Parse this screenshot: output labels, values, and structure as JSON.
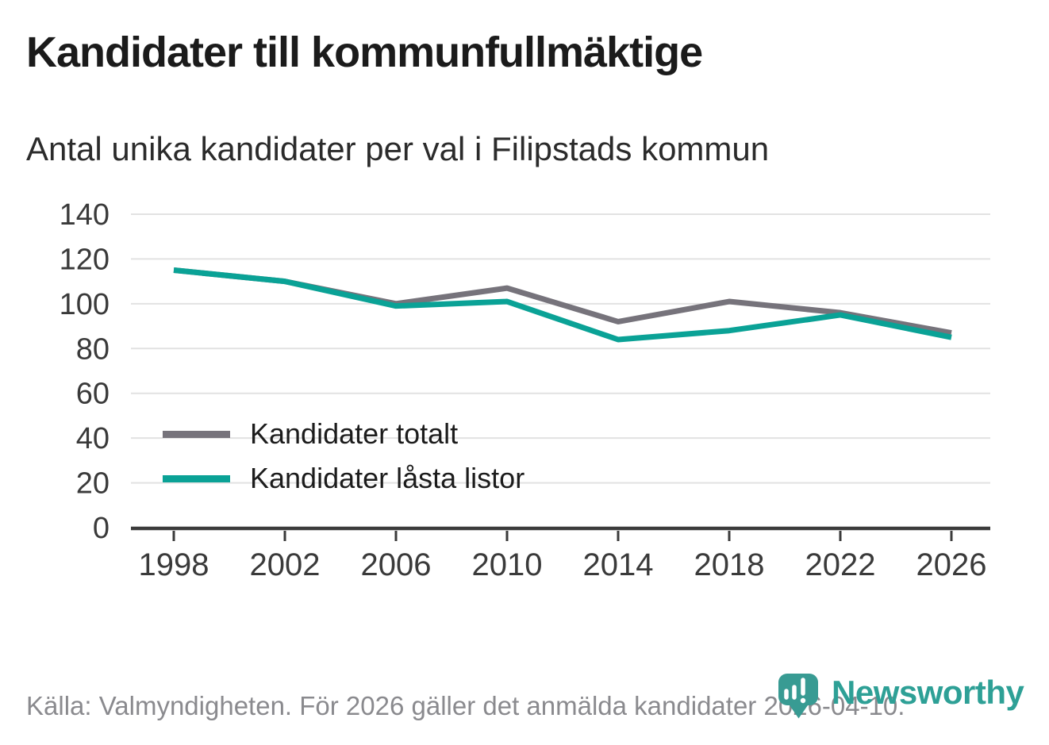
{
  "header": {
    "title": "Kandidater till kommunfullmäktige",
    "subtitle": "Antal unika kandidater per val i Filipstads kommun"
  },
  "chart_data": {
    "type": "line",
    "title": "Kandidater till kommunfullmäktige",
    "subtitle": "Antal unika kandidater per val i Filipstads kommun",
    "x": [
      1998,
      2002,
      2006,
      2010,
      2014,
      2018,
      2022,
      2026
    ],
    "series": [
      {
        "name": "Kandidater totalt",
        "color": "#76737B",
        "values": [
          115,
          110,
          100,
          107,
          92,
          101,
          96,
          87
        ]
      },
      {
        "name": "Kandidater låsta listor",
        "color": "#0AA296",
        "values": [
          115,
          110,
          99,
          101,
          84,
          88,
          95,
          85
        ]
      }
    ],
    "ylim": [
      0,
      140
    ],
    "yticks": [
      0,
      20,
      40,
      60,
      80,
      100,
      120,
      140
    ],
    "grid": true,
    "grid_color": "#E2E2E2",
    "axis_color": "#3B3B3B",
    "legend_position": "inside-left"
  },
  "footer": {
    "source": "Källa: Valmyndigheten. För 2026 gäller det anmälda kandidater 2026-04-10."
  },
  "branding": {
    "name": "Newsworthy",
    "pin_color": "#389B93",
    "text_color": "#2EA096"
  }
}
